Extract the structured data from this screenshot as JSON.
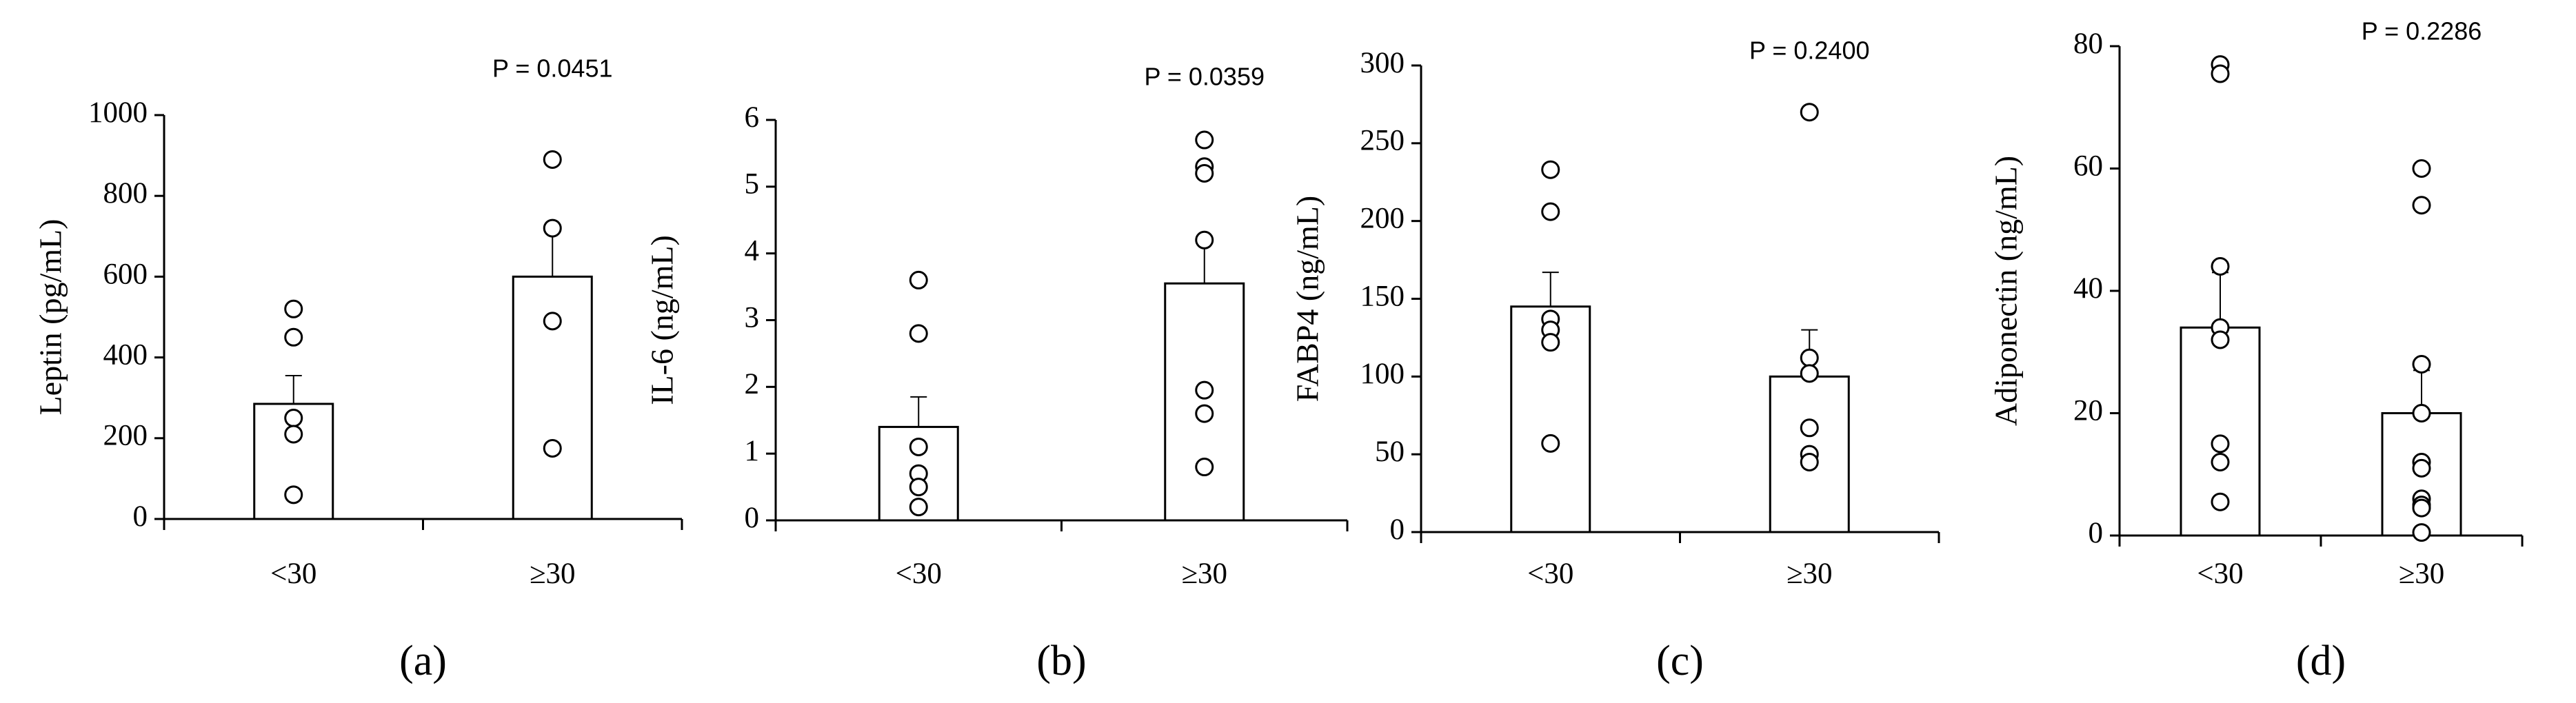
{
  "chart_data": [
    {
      "type": "bar",
      "ylabel": "Leptin (pg/mL)",
      "panel_label": "(a)",
      "annotation": "P = 0.0451",
      "categories": [
        "<30",
        "≥30"
      ],
      "values": [
        285,
        600
      ],
      "errors": [
        70,
        120
      ],
      "points": [
        [
          520,
          450,
          250,
          210,
          60
        ],
        [
          890,
          720,
          490,
          175
        ]
      ],
      "color": "#ffffff",
      "ylim": [
        0,
        1000
      ],
      "yticks": [
        0,
        200,
        400,
        600,
        800,
        1000
      ]
    },
    {
      "type": "bar",
      "ylabel": "IL-6 (ng/mL)",
      "panel_label": "(b)",
      "annotation": "P = 0.0359",
      "categories": [
        "<30",
        "≥30"
      ],
      "values": [
        1.4,
        3.55
      ],
      "errors": [
        0.45,
        0.6
      ],
      "points": [
        [
          3.6,
          2.8,
          1.1,
          0.7,
          0.5,
          0.2
        ],
        [
          5.7,
          5.3,
          5.2,
          4.2,
          1.95,
          1.6,
          0.8
        ]
      ],
      "color": "#ffffff",
      "ylim": [
        0,
        6
      ],
      "yticks": [
        0,
        1,
        2,
        3,
        4,
        5,
        6
      ]
    },
    {
      "type": "bar",
      "ylabel": "FABP4 (ng/mL)",
      "panel_label": "(c)",
      "annotation": "P = 0.2400",
      "categories": [
        "<30",
        "≥30"
      ],
      "values": [
        145,
        100
      ],
      "errors": [
        22,
        30
      ],
      "points": [
        [
          233,
          206,
          137,
          130,
          122,
          57
        ],
        [
          270,
          112,
          102,
          67,
          50,
          45
        ]
      ],
      "color": "#ffffff",
      "ylim": [
        0,
        300
      ],
      "yticks": [
        0,
        50,
        100,
        150,
        200,
        250,
        300
      ]
    },
    {
      "type": "bar",
      "ylabel": "Adiponectin (ng/mL)",
      "panel_label": "(d)",
      "annotation": "P = 0.2286",
      "categories": [
        "<30",
        "≥30"
      ],
      "values": [
        34,
        20
      ],
      "errors": [
        9,
        7
      ],
      "points": [
        [
          77,
          75.5,
          44,
          34,
          32,
          15,
          12,
          5.5
        ],
        [
          60,
          54,
          28,
          20,
          12,
          11,
          6,
          5,
          4.5,
          0.5
        ]
      ],
      "color": "#ffffff",
      "ylim": [
        0,
        80
      ],
      "yticks": [
        0,
        20,
        40,
        60,
        80
      ]
    }
  ]
}
